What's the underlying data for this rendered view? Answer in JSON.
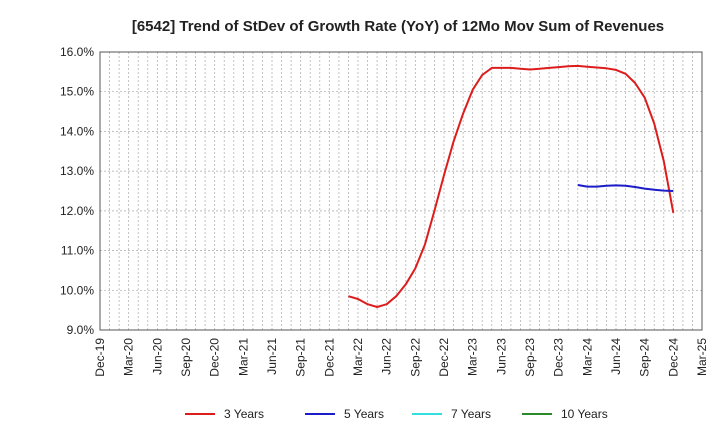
{
  "chart_data": {
    "type": "line",
    "title": "[6542]  Trend of StDev of Growth Rate (YoY) of 12Mo Mov Sum of Revenues",
    "xlabel": "",
    "ylabel": "",
    "ylim": [
      9.0,
      16.0
    ],
    "yticks": [
      "9.0%",
      "10.0%",
      "11.0%",
      "12.0%",
      "13.0%",
      "14.0%",
      "15.0%",
      "16.0%"
    ],
    "xticks": [
      "Dec-19",
      "Mar-20",
      "Jun-20",
      "Sep-20",
      "Dec-20",
      "Mar-21",
      "Jun-21",
      "Sep-21",
      "Dec-21",
      "Mar-22",
      "Jun-22",
      "Sep-22",
      "Dec-22",
      "Mar-23",
      "Jun-23",
      "Sep-23",
      "Dec-23",
      "Mar-24",
      "Jun-24",
      "Sep-24",
      "Dec-24",
      "Mar-25"
    ],
    "x_month_index_range": [
      0,
      63
    ],
    "grid": true,
    "legend_position": "bottom",
    "series": [
      {
        "name": "3 Years",
        "color": "#dd1c1c",
        "start_month_index": 26,
        "values": [
          9.85,
          9.78,
          9.65,
          9.58,
          9.65,
          9.85,
          10.15,
          10.55,
          11.15,
          12.0,
          12.9,
          13.75,
          14.45,
          15.05,
          15.42,
          15.6,
          15.6,
          15.6,
          15.58,
          15.56,
          15.58,
          15.6,
          15.62,
          15.64,
          15.65,
          15.63,
          15.61,
          15.59,
          15.55,
          15.45,
          15.22,
          14.85,
          14.2,
          13.25,
          11.95
        ]
      },
      {
        "name": "5 Years",
        "color": "#1c1cc8",
        "start_month_index": 50,
        "values": [
          12.65,
          12.61,
          12.61,
          12.63,
          12.64,
          12.63,
          12.6,
          12.56,
          12.53,
          12.51,
          12.5
        ]
      },
      {
        "name": "7 Years",
        "color": "#33e0e0",
        "start_month_index": 0,
        "values": []
      },
      {
        "name": "10 Years",
        "color": "#2a8a2a",
        "start_month_index": 0,
        "values": []
      }
    ]
  }
}
